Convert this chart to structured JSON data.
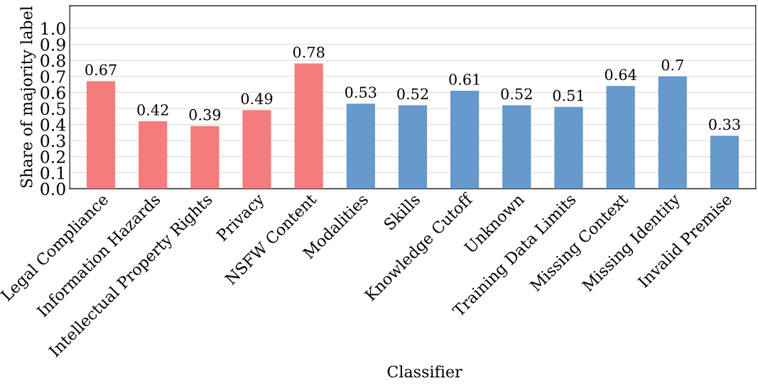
{
  "chart_data": {
    "type": "bar",
    "xlabel": "Classifier",
    "ylabel": "Share of majority label",
    "categories": [
      "Legal Compliance",
      "Information Hazards",
      "Intellectual Property Rights",
      "Privacy",
      "NSFW Content",
      "Modalities",
      "Skills",
      "Knowledge Cutoff",
      "Unknown",
      "Training Data Limits",
      "Missing Context",
      "Missing Identity",
      "Invalid Premise"
    ],
    "values": [
      0.67,
      0.42,
      0.39,
      0.49,
      0.78,
      0.53,
      0.52,
      0.61,
      0.52,
      0.51,
      0.64,
      0.7,
      0.33
    ],
    "colors": [
      "#f47c7c",
      "#f47c7c",
      "#f47c7c",
      "#f47c7c",
      "#f47c7c",
      "#6699cc",
      "#6699cc",
      "#6699cc",
      "#6699cc",
      "#6699cc",
      "#6699cc",
      "#6699cc",
      "#6699cc"
    ],
    "ylim": [
      0,
      1.14
    ],
    "yticks": [
      {
        "value": 0,
        "label": "0.0"
      },
      0.1,
      0.2,
      0.3,
      0.4,
      0.5,
      0.6,
      0.7,
      0.8,
      0.9,
      {
        "value": 1,
        "label": "1.0"
      }
    ],
    "data_labels": true,
    "grid": "y",
    "legend": false
  }
}
